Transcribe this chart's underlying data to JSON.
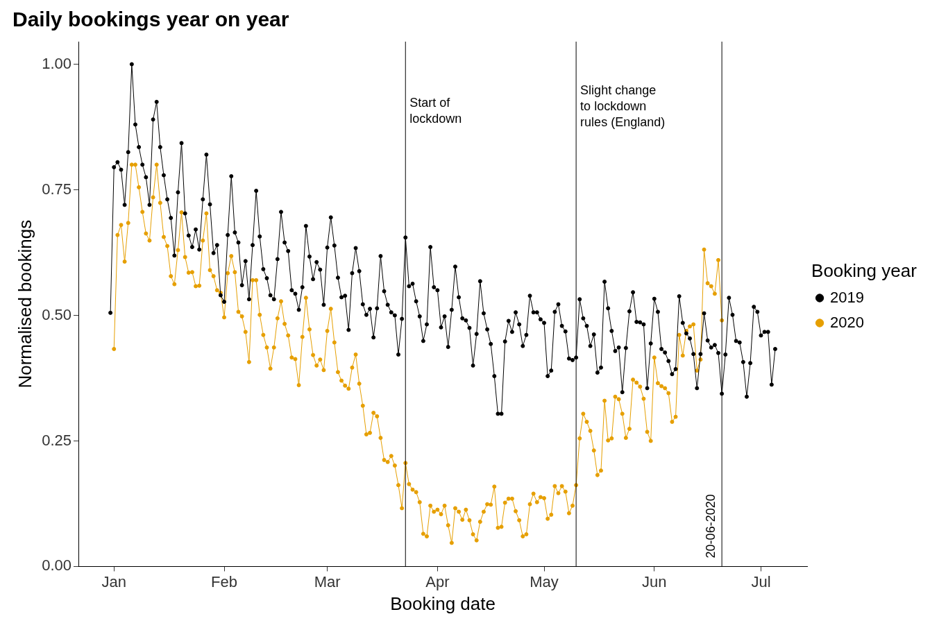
{
  "chart_data": {
    "type": "line",
    "title": "Daily bookings year on year",
    "xlabel": "Booking date",
    "ylabel": "Normalised bookings",
    "legend_title": "Booking year",
    "legend": "right",
    "grid": false,
    "marker": "circle",
    "x": [
      "2019-12-31",
      "2020-01-01",
      "2020-01-02",
      "2020-01-03",
      "2020-01-04",
      "2020-01-05",
      "2020-01-06",
      "2020-01-07",
      "2020-01-08",
      "2020-01-09",
      "2020-01-10",
      "2020-01-11",
      "2020-01-12",
      "2020-01-13",
      "2020-01-14",
      "2020-01-15",
      "2020-01-16",
      "2020-01-17",
      "2020-01-18",
      "2020-01-19",
      "2020-01-20",
      "2020-01-21",
      "2020-01-22",
      "2020-01-23",
      "2020-01-24",
      "2020-01-25",
      "2020-01-26",
      "2020-01-27",
      "2020-01-28",
      "2020-01-29",
      "2020-01-30",
      "2020-01-31",
      "2020-02-01",
      "2020-02-02",
      "2020-02-03",
      "2020-02-04",
      "2020-02-05",
      "2020-02-06",
      "2020-02-07",
      "2020-02-08",
      "2020-02-09",
      "2020-02-10",
      "2020-02-11",
      "2020-02-12",
      "2020-02-13",
      "2020-02-14",
      "2020-02-15",
      "2020-02-16",
      "2020-02-17",
      "2020-02-18",
      "2020-02-19",
      "2020-02-20",
      "2020-02-21",
      "2020-02-22",
      "2020-02-23",
      "2020-02-24",
      "2020-02-25",
      "2020-02-26",
      "2020-02-27",
      "2020-02-28",
      "2020-02-29",
      "2020-03-01",
      "2020-03-02",
      "2020-03-03",
      "2020-03-04",
      "2020-03-05",
      "2020-03-06",
      "2020-03-07",
      "2020-03-08",
      "2020-03-09",
      "2020-03-10",
      "2020-03-11",
      "2020-03-12",
      "2020-03-13",
      "2020-03-14",
      "2020-03-15",
      "2020-03-16",
      "2020-03-17",
      "2020-03-18",
      "2020-03-19",
      "2020-03-20",
      "2020-03-21",
      "2020-03-22",
      "2020-03-23",
      "2020-03-24",
      "2020-03-25",
      "2020-03-26",
      "2020-03-27",
      "2020-03-28",
      "2020-03-29",
      "2020-03-30",
      "2020-03-31",
      "2020-04-01",
      "2020-04-02",
      "2020-04-03",
      "2020-04-04",
      "2020-04-05",
      "2020-04-06",
      "2020-04-07",
      "2020-04-08",
      "2020-04-09",
      "2020-04-10",
      "2020-04-11",
      "2020-04-12",
      "2020-04-13",
      "2020-04-14",
      "2020-04-15",
      "2020-04-16",
      "2020-04-17",
      "2020-04-18",
      "2020-04-19",
      "2020-04-20",
      "2020-04-21",
      "2020-04-22",
      "2020-04-23",
      "2020-04-24",
      "2020-04-25",
      "2020-04-26",
      "2020-04-27",
      "2020-04-28",
      "2020-04-29",
      "2020-04-30",
      "2020-05-01",
      "2020-05-02",
      "2020-05-03",
      "2020-05-04",
      "2020-05-05",
      "2020-05-06",
      "2020-05-07",
      "2020-05-08",
      "2020-05-09",
      "2020-05-10",
      "2020-05-11",
      "2020-05-12",
      "2020-05-13",
      "2020-05-14",
      "2020-05-15",
      "2020-05-16",
      "2020-05-17",
      "2020-05-18",
      "2020-05-19",
      "2020-05-20",
      "2020-05-21",
      "2020-05-22",
      "2020-05-23",
      "2020-05-24",
      "2020-05-25",
      "2020-05-26",
      "2020-05-27",
      "2020-05-28",
      "2020-05-29",
      "2020-05-30",
      "2020-05-31",
      "2020-06-01",
      "2020-06-02",
      "2020-06-03",
      "2020-06-04",
      "2020-06-05",
      "2020-06-06",
      "2020-06-07",
      "2020-06-08",
      "2020-06-09",
      "2020-06-10",
      "2020-06-11",
      "2020-06-12",
      "2020-06-13",
      "2020-06-14",
      "2020-06-15",
      "2020-06-16",
      "2020-06-17",
      "2020-06-18",
      "2020-06-19",
      "2020-06-20",
      "2020-06-21",
      "2020-06-22",
      "2020-06-23",
      "2020-06-24",
      "2020-06-25",
      "2020-06-26",
      "2020-06-27",
      "2020-06-28",
      "2020-06-29",
      "2020-06-30",
      "2020-07-01",
      "2020-07-02",
      "2020-07-03",
      "2020-07-04",
      "2020-07-05"
    ],
    "series": [
      {
        "name": "2019",
        "color": "#000000",
        "values": [
          0.505,
          0.795,
          0.805,
          0.79,
          0.72,
          0.825,
          1.0,
          0.88,
          0.835,
          0.8,
          0.775,
          0.72,
          0.89,
          0.925,
          0.835,
          0.779,
          0.731,
          0.694,
          0.619,
          0.745,
          0.843,
          0.703,
          0.659,
          0.636,
          0.671,
          0.631,
          0.731,
          0.82,
          0.721,
          0.624,
          0.64,
          0.54,
          0.527,
          0.66,
          0.777,
          0.665,
          0.645,
          0.56,
          0.608,
          0.532,
          0.64,
          0.748,
          0.657,
          0.592,
          0.574,
          0.54,
          0.532,
          0.612,
          0.706,
          0.645,
          0.628,
          0.55,
          0.543,
          0.511,
          0.556,
          0.678,
          0.617,
          0.572,
          0.606,
          0.591,
          0.521,
          0.635,
          0.695,
          0.639,
          0.575,
          0.536,
          0.539,
          0.471,
          0.584,
          0.634,
          0.588,
          0.522,
          0.501,
          0.513,
          0.456,
          0.514,
          0.618,
          0.548,
          0.521,
          0.506,
          0.5,
          0.422,
          0.493,
          0.655,
          0.558,
          0.563,
          0.528,
          0.498,
          0.449,
          0.482,
          0.636,
          0.556,
          0.55,
          0.476,
          0.498,
          0.437,
          0.511,
          0.597,
          0.536,
          0.494,
          0.49,
          0.475,
          0.4,
          0.463,
          0.568,
          0.504,
          0.472,
          0.443,
          0.379,
          0.304,
          0.304,
          0.448,
          0.489,
          0.467,
          0.506,
          0.482,
          0.439,
          0.461,
          0.539,
          0.506,
          0.506,
          0.492,
          0.485,
          0.379,
          0.39,
          0.507,
          0.522,
          0.479,
          0.468,
          0.414,
          0.411,
          0.416,
          0.532,
          0.494,
          0.479,
          0.439,
          0.462,
          0.386,
          0.396,
          0.567,
          0.514,
          0.469,
          0.429,
          0.436,
          0.347,
          0.435,
          0.508,
          0.546,
          0.487,
          0.486,
          0.482,
          0.355,
          0.444,
          0.533,
          0.507,
          0.433,
          0.426,
          0.409,
          0.383,
          0.393,
          0.538,
          0.485,
          0.464,
          0.454,
          0.423,
          0.355,
          0.423,
          0.504,
          0.45,
          0.436,
          0.441,
          0.425,
          0.344,
          0.422,
          0.535,
          0.501,
          0.449,
          0.446,
          0.407,
          0.338,
          0.405,
          0.517,
          0.507,
          0.46,
          0.467,
          0.467,
          0.362,
          0.433
        ]
      },
      {
        "name": "2020",
        "color": "#e69f00",
        "values": [
          null,
          0.433,
          0.66,
          0.68,
          0.607,
          0.684,
          0.8,
          0.8,
          0.755,
          0.706,
          0.663,
          0.649,
          0.735,
          0.8,
          0.724,
          0.656,
          0.638,
          0.578,
          0.562,
          0.63,
          0.705,
          0.616,
          0.585,
          0.586,
          0.558,
          0.559,
          0.649,
          0.703,
          0.59,
          0.578,
          0.55,
          0.545,
          0.496,
          0.584,
          0.618,
          0.586,
          0.507,
          0.498,
          0.467,
          0.407,
          0.57,
          0.57,
          0.501,
          0.461,
          0.436,
          0.394,
          0.436,
          0.494,
          0.528,
          0.483,
          0.46,
          0.416,
          0.413,
          0.361,
          0.457,
          0.535,
          0.472,
          0.421,
          0.4,
          0.412,
          0.391,
          0.469,
          0.513,
          0.446,
          0.387,
          0.37,
          0.36,
          0.354,
          0.396,
          0.422,
          0.364,
          0.32,
          0.263,
          0.266,
          0.306,
          0.299,
          0.256,
          0.212,
          0.208,
          0.22,
          0.201,
          0.162,
          0.116,
          0.206,
          0.164,
          0.153,
          0.148,
          0.128,
          0.065,
          0.06,
          0.121,
          0.109,
          0.113,
          0.104,
          0.121,
          0.082,
          0.047,
          0.116,
          0.109,
          0.093,
          0.113,
          0.092,
          0.064,
          0.052,
          0.089,
          0.109,
          0.124,
          0.123,
          0.159,
          0.077,
          0.079,
          0.127,
          0.135,
          0.135,
          0.11,
          0.092,
          0.06,
          0.064,
          0.124,
          0.145,
          0.128,
          0.138,
          0.136,
          0.095,
          0.103,
          0.16,
          0.146,
          0.16,
          0.149,
          0.106,
          0.121,
          0.162,
          0.255,
          0.304,
          0.288,
          0.27,
          0.231,
          0.182,
          0.191,
          0.33,
          0.251,
          0.255,
          0.338,
          0.333,
          0.304,
          0.256,
          0.274,
          0.372,
          0.366,
          0.358,
          0.334,
          0.268,
          0.25,
          0.416,
          0.365,
          0.359,
          0.355,
          0.345,
          0.288,
          0.298,
          0.461,
          0.42,
          0.469,
          0.478,
          0.482,
          0.39,
          0.412,
          0.631,
          0.564,
          0.558,
          0.543,
          0.61,
          0.49,
          null,
          null,
          null,
          null,
          null,
          null,
          null,
          null,
          null,
          null,
          null,
          null,
          null,
          null,
          null
        ]
      }
    ],
    "xlim": [
      "2019-12-22",
      "2020-07-14"
    ],
    "xticks": [
      {
        "value": "2020-01-01",
        "label": "Jan"
      },
      {
        "value": "2020-02-01",
        "label": "Feb"
      },
      {
        "value": "2020-03-01",
        "label": "Mar"
      },
      {
        "value": "2020-04-01",
        "label": "Apr"
      },
      {
        "value": "2020-05-01",
        "label": "May"
      },
      {
        "value": "2020-06-01",
        "label": "Jun"
      },
      {
        "value": "2020-07-01",
        "label": "Jul"
      }
    ],
    "ylim": [
      0,
      1.045
    ],
    "yticks": [
      {
        "value": 0,
        "label": "0.00"
      },
      {
        "value": 0.25,
        "label": "0.25"
      },
      {
        "value": 0.5,
        "label": "0.50"
      },
      {
        "value": 0.75,
        "label": "0.75"
      },
      {
        "value": 1,
        "label": "1.00"
      }
    ],
    "ref_lines": [
      {
        "axis": "x",
        "value": "2020-03-23",
        "label": "Start of\nlockdown",
        "color": "#000000"
      },
      {
        "axis": "x",
        "value": "2020-05-10",
        "label": "Slight change\nto lockdown\nrules (England)",
        "color": "#000000"
      },
      {
        "axis": "x",
        "value": "2020-06-20",
        "label": "20-06-2020",
        "color": "#000000"
      }
    ]
  }
}
